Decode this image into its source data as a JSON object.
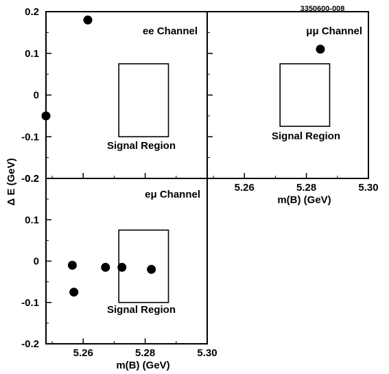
{
  "figure_code": "3350600-008",
  "chart_data": [
    {
      "type": "scatter",
      "panel": "top-left",
      "title": "ee Channel",
      "region_label": "Signal Region",
      "xlim": [
        5.248,
        5.3
      ],
      "ylim": [
        -0.2,
        0.2
      ],
      "xticks": [],
      "yticks": [
        "0.2",
        "0.1",
        "0",
        "-0.1",
        "-0.2"
      ],
      "ytick_values": [
        0.2,
        0.1,
        0,
        -0.1,
        -0.2
      ],
      "signal_region": {
        "x": [
          5.2715,
          5.2875
        ],
        "y": [
          -0.1,
          0.075
        ]
      },
      "points": [
        {
          "x": 5.2615,
          "y": 0.18
        },
        {
          "x": 5.248,
          "y": -0.05
        }
      ]
    },
    {
      "type": "scatter",
      "panel": "top-right",
      "title": "μμ Channel",
      "region_label": "Signal Region",
      "xlabel": "m(B) (GeV)",
      "xlim": [
        5.248,
        5.3
      ],
      "ylim": [
        -0.2,
        0.2
      ],
      "xticks": [
        "5.26",
        "5.28",
        "5.30"
      ],
      "xtick_values": [
        5.26,
        5.28,
        5.3
      ],
      "signal_region": {
        "x": [
          5.2715,
          5.2875
        ],
        "y": [
          -0.075,
          0.075
        ]
      },
      "points": [
        {
          "x": 5.2845,
          "y": 0.11
        }
      ]
    },
    {
      "type": "scatter",
      "panel": "bottom-left",
      "title": "eμ Channel",
      "region_label": "Signal Region",
      "xlabel": "m(B) (GeV)",
      "xlim": [
        5.248,
        5.3
      ],
      "ylim": [
        -0.2,
        0.2
      ],
      "xticks": [
        "5.26",
        "5.28",
        "5.30"
      ],
      "xtick_values": [
        5.26,
        5.28,
        5.3
      ],
      "yticks": [
        "0.2",
        "0.1",
        "0",
        "-0.1",
        "-0.2"
      ],
      "ytick_values": [
        0.2,
        0.1,
        0,
        -0.1,
        -0.2
      ],
      "signal_region": {
        "x": [
          5.2715,
          5.2875
        ],
        "y": [
          -0.1,
          0.075
        ]
      },
      "points": [
        {
          "x": 5.2565,
          "y": -0.01
        },
        {
          "x": 5.257,
          "y": -0.075
        },
        {
          "x": 5.2672,
          "y": -0.015
        },
        {
          "x": 5.2725,
          "y": -0.015
        },
        {
          "x": 5.282,
          "y": -0.02
        }
      ]
    }
  ],
  "shared_ylabel": "Δ E (GeV)"
}
